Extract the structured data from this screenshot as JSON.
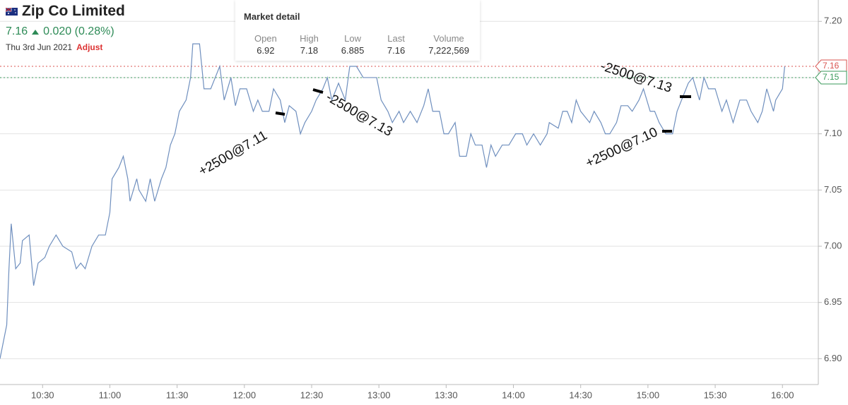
{
  "header": {
    "title": "Zip Co Limited",
    "price": "7.16",
    "change": "0.020 (0.28%)",
    "date": "Thu 3rd Jun 2021",
    "action": "Adjust"
  },
  "market_detail": {
    "title": "Market detail",
    "columns": [
      "Open",
      "High",
      "Low",
      "Last",
      "Volume"
    ],
    "values": [
      "6.92",
      "7.18",
      "6.885",
      "7.16",
      "7,222,569"
    ]
  },
  "chart_data": {
    "type": "line",
    "xlim": [
      611,
      976
    ],
    "xticks": [
      {
        "value": 630,
        "label": "10:30"
      },
      {
        "value": 660,
        "label": "11:00"
      },
      {
        "value": 690,
        "label": "11:30"
      },
      {
        "value": 720,
        "label": "12:00"
      },
      {
        "value": 750,
        "label": "12:30"
      },
      {
        "value": 780,
        "label": "13:00"
      },
      {
        "value": 810,
        "label": "13:30"
      },
      {
        "value": 840,
        "label": "14:00"
      },
      {
        "value": 870,
        "label": "14:30"
      },
      {
        "value": 900,
        "label": "15:00"
      },
      {
        "value": 930,
        "label": "15:30"
      },
      {
        "value": 960,
        "label": "16:00"
      }
    ],
    "ylim": [
      6.877,
      7.219
    ],
    "yticks": [
      {
        "value": 6.9,
        "label": "6.90"
      },
      6.95,
      {
        "value": 7,
        "label": "7.00"
      },
      7.05,
      {
        "value": 7.1,
        "label": "7.10"
      },
      7.15,
      {
        "value": 7.2,
        "label": "7.20"
      }
    ],
    "grid": true,
    "series": [
      {
        "color": "#6f8fbe",
        "x": [
          611,
          614,
          615,
          616,
          618,
          620,
          621,
          624,
          626,
          628,
          631,
          633,
          636,
          639,
          643,
          645,
          647,
          649,
          652,
          655,
          658,
          660,
          661,
          664,
          666,
          668,
          669,
          672,
          673,
          676,
          678,
          680,
          683,
          685,
          687,
          689,
          691,
          694,
          696,
          697,
          700,
          702,
          705,
          707,
          709,
          711,
          714,
          716,
          718,
          721,
          724,
          726,
          728,
          731,
          733,
          736,
          738,
          740,
          743,
          745,
          747,
          750,
          752,
          755,
          757,
          759,
          762,
          765,
          767,
          770,
          773,
          777,
          779,
          781,
          784,
          786,
          789,
          791,
          794,
          797,
          800,
          802,
          804,
          807,
          809,
          811,
          814,
          816,
          819,
          821,
          823,
          826,
          828,
          830,
          832,
          835,
          838,
          841,
          844,
          846,
          849,
          852,
          855,
          856,
          860,
          862,
          864,
          866,
          868,
          870,
          874,
          876,
          879,
          881,
          883,
          886,
          888,
          891,
          893,
          896,
          898,
          901,
          903,
          905,
          908,
          911,
          913,
          915,
          918,
          920,
          923,
          925,
          927,
          930,
          933,
          935,
          938,
          941,
          944,
          946,
          949,
          951,
          953,
          956,
          957,
          960,
          961
        ],
        "values": [
          6.9,
          6.93,
          6.98,
          7.02,
          6.98,
          6.985,
          7.005,
          7.01,
          6.965,
          6.985,
          6.99,
          7.0,
          7.01,
          7.0,
          6.995,
          6.98,
          6.985,
          6.98,
          7.0,
          7.01,
          7.01,
          7.03,
          7.06,
          7.07,
          7.08,
          7.06,
          7.04,
          7.06,
          7.05,
          7.04,
          7.06,
          7.04,
          7.06,
          7.07,
          7.09,
          7.1,
          7.12,
          7.13,
          7.15,
          7.18,
          7.18,
          7.14,
          7.14,
          7.15,
          7.16,
          7.13,
          7.15,
          7.125,
          7.14,
          7.14,
          7.12,
          7.13,
          7.12,
          7.12,
          7.14,
          7.13,
          7.11,
          7.125,
          7.12,
          7.1,
          7.11,
          7.12,
          7.13,
          7.14,
          7.15,
          7.13,
          7.145,
          7.13,
          7.16,
          7.16,
          7.15,
          7.15,
          7.15,
          7.13,
          7.12,
          7.11,
          7.12,
          7.11,
          7.12,
          7.11,
          7.125,
          7.14,
          7.12,
          7.12,
          7.1,
          7.1,
          7.11,
          7.08,
          7.08,
          7.1,
          7.09,
          7.09,
          7.07,
          7.09,
          7.08,
          7.09,
          7.09,
          7.1,
          7.1,
          7.09,
          7.1,
          7.09,
          7.1,
          7.11,
          7.105,
          7.12,
          7.12,
          7.11,
          7.13,
          7.12,
          7.11,
          7.12,
          7.11,
          7.1,
          7.1,
          7.11,
          7.125,
          7.125,
          7.12,
          7.13,
          7.14,
          7.12,
          7.12,
          7.11,
          7.1,
          7.1,
          7.12,
          7.13,
          7.145,
          7.15,
          7.13,
          7.15,
          7.14,
          7.14,
          7.12,
          7.13,
          7.11,
          7.13,
          7.13,
          7.12,
          7.11,
          7.12,
          7.14,
          7.12,
          7.13,
          7.14,
          7.16
        ]
      }
    ],
    "price_tags": [
      {
        "value": 7.16,
        "color": "#d9534f"
      },
      {
        "value": 7.15,
        "color": "#3a9a5b"
      }
    ],
    "annotations": [
      "+2500@7.11",
      "-2500@7.13",
      "-2500@7.13",
      "+2500@7.10"
    ]
  }
}
